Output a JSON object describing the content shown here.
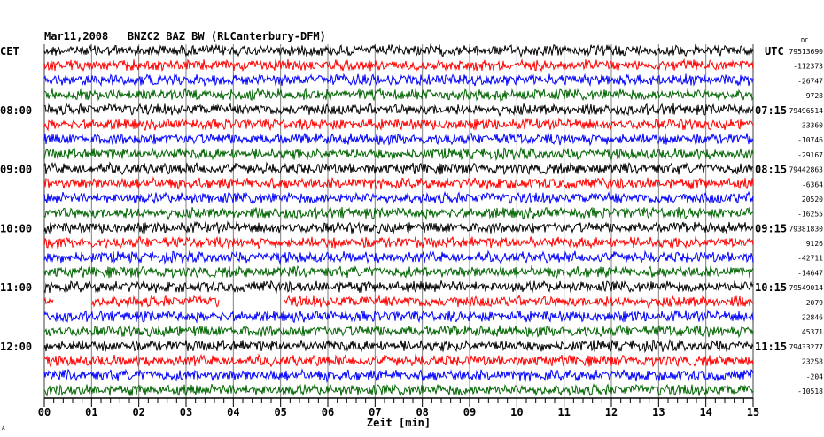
{
  "chart_data": {
    "type": "line",
    "title": "Mar11,2008   BNZC2 BAZ BW (RLCanterbury-DFM)",
    "left_timezone": "CET",
    "right_timezone": "UTC",
    "dc_label": "DC",
    "xlabel": "Zeit [min]",
    "xlim": [
      0,
      15
    ],
    "x_ticks": [
      "00",
      "01",
      "02",
      "03",
      "04",
      "05",
      "06",
      "07",
      "08",
      "09",
      "10",
      "11",
      "12",
      "13",
      "14",
      "15"
    ],
    "grid": true,
    "trace_colors": [
      "#000000",
      "#ff0000",
      "#0000ff",
      "#006400"
    ],
    "rows": [
      {
        "left": "",
        "right_hour": "",
        "dc": "79513690"
      },
      {
        "left": "",
        "right_hour": "",
        "dc": "-112373"
      },
      {
        "left": "",
        "right_hour": "",
        "dc": "-26747"
      },
      {
        "left": "",
        "right_hour": "",
        "dc": "9728"
      },
      {
        "left": "08:00",
        "right_hour": "07:15",
        "dc": "79496514"
      },
      {
        "left": "",
        "right_hour": "",
        "dc": "33360"
      },
      {
        "left": "",
        "right_hour": "",
        "dc": "-10746"
      },
      {
        "left": "",
        "right_hour": "",
        "dc": "-29167"
      },
      {
        "left": "09:00",
        "right_hour": "08:15",
        "dc": "79442863"
      },
      {
        "left": "",
        "right_hour": "",
        "dc": "-6364"
      },
      {
        "left": "",
        "right_hour": "",
        "dc": "20520"
      },
      {
        "left": "",
        "right_hour": "",
        "dc": "-16255"
      },
      {
        "left": "10:00",
        "right_hour": "09:15",
        "dc": "79381830"
      },
      {
        "left": "",
        "right_hour": "",
        "dc": "9126"
      },
      {
        "left": "",
        "right_hour": "",
        "dc": "-42711"
      },
      {
        "left": "",
        "right_hour": "",
        "dc": "-14647"
      },
      {
        "left": "11:00",
        "right_hour": "10:15",
        "dc": "79549014"
      },
      {
        "left": "",
        "right_hour": "",
        "dc": "2079",
        "gaps": [
          [
            0.2,
            1.0
          ],
          [
            3.7,
            5.05
          ]
        ]
      },
      {
        "left": "",
        "right_hour": "",
        "dc": "-22846"
      },
      {
        "left": "",
        "right_hour": "",
        "dc": "45371"
      },
      {
        "left": "12:00",
        "right_hour": "11:15",
        "dc": "79433277"
      },
      {
        "left": "",
        "right_hour": "",
        "dc": "23258"
      },
      {
        "left": "",
        "right_hour": "",
        "dc": "-204"
      },
      {
        "left": "",
        "right_hour": "",
        "dc": "-10518"
      }
    ],
    "corner_mark": "A"
  }
}
